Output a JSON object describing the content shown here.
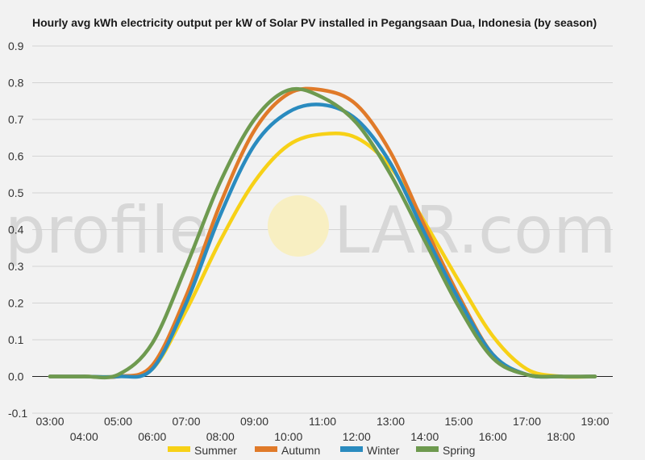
{
  "chart_data": {
    "type": "line",
    "title": "Hourly avg kWh electricity output per kW of Solar PV installed in Pegangsaan Dua, Indonesia (by season)",
    "xlabel": "",
    "ylabel": "",
    "ylim": [
      -0.1,
      0.9
    ],
    "yticks": [
      "-0.1",
      "0.0",
      "0.1",
      "0.2",
      "0.3",
      "0.4",
      "0.5",
      "0.6",
      "0.7",
      "0.8",
      "0.9"
    ],
    "x": [
      "03:00",
      "04:00",
      "05:00",
      "06:00",
      "07:00",
      "08:00",
      "09:00",
      "10:00",
      "11:00",
      "12:00",
      "13:00",
      "14:00",
      "15:00",
      "16:00",
      "17:00",
      "18:00",
      "19:00"
    ],
    "grid": true,
    "legend_position": "bottom",
    "series": [
      {
        "name": "Summer",
        "color": "#f7d117",
        "values": [
          0,
          0,
          0,
          0.02,
          0.18,
          0.37,
          0.53,
          0.63,
          0.66,
          0.65,
          0.57,
          0.42,
          0.26,
          0.11,
          0.02,
          0,
          0
        ]
      },
      {
        "name": "Autumn",
        "color": "#e07a29",
        "values": [
          0,
          0,
          0,
          0.03,
          0.22,
          0.47,
          0.67,
          0.77,
          0.78,
          0.74,
          0.61,
          0.41,
          0.22,
          0.06,
          0.005,
          0,
          0
        ]
      },
      {
        "name": "Winter",
        "color": "#2a8bbf",
        "values": [
          0,
          0,
          0,
          0.02,
          0.2,
          0.44,
          0.63,
          0.72,
          0.74,
          0.7,
          0.58,
          0.39,
          0.21,
          0.06,
          0.005,
          0,
          0
        ]
      },
      {
        "name": "Spring",
        "color": "#6e9a4f",
        "values": [
          0,
          0,
          0.005,
          0.09,
          0.3,
          0.53,
          0.7,
          0.78,
          0.76,
          0.69,
          0.55,
          0.37,
          0.19,
          0.05,
          0.005,
          0,
          0
        ]
      }
    ]
  },
  "watermark": {
    "text_before": "profile",
    "text_after": "LAR.com",
    "sun_color": "#f8efc2"
  }
}
